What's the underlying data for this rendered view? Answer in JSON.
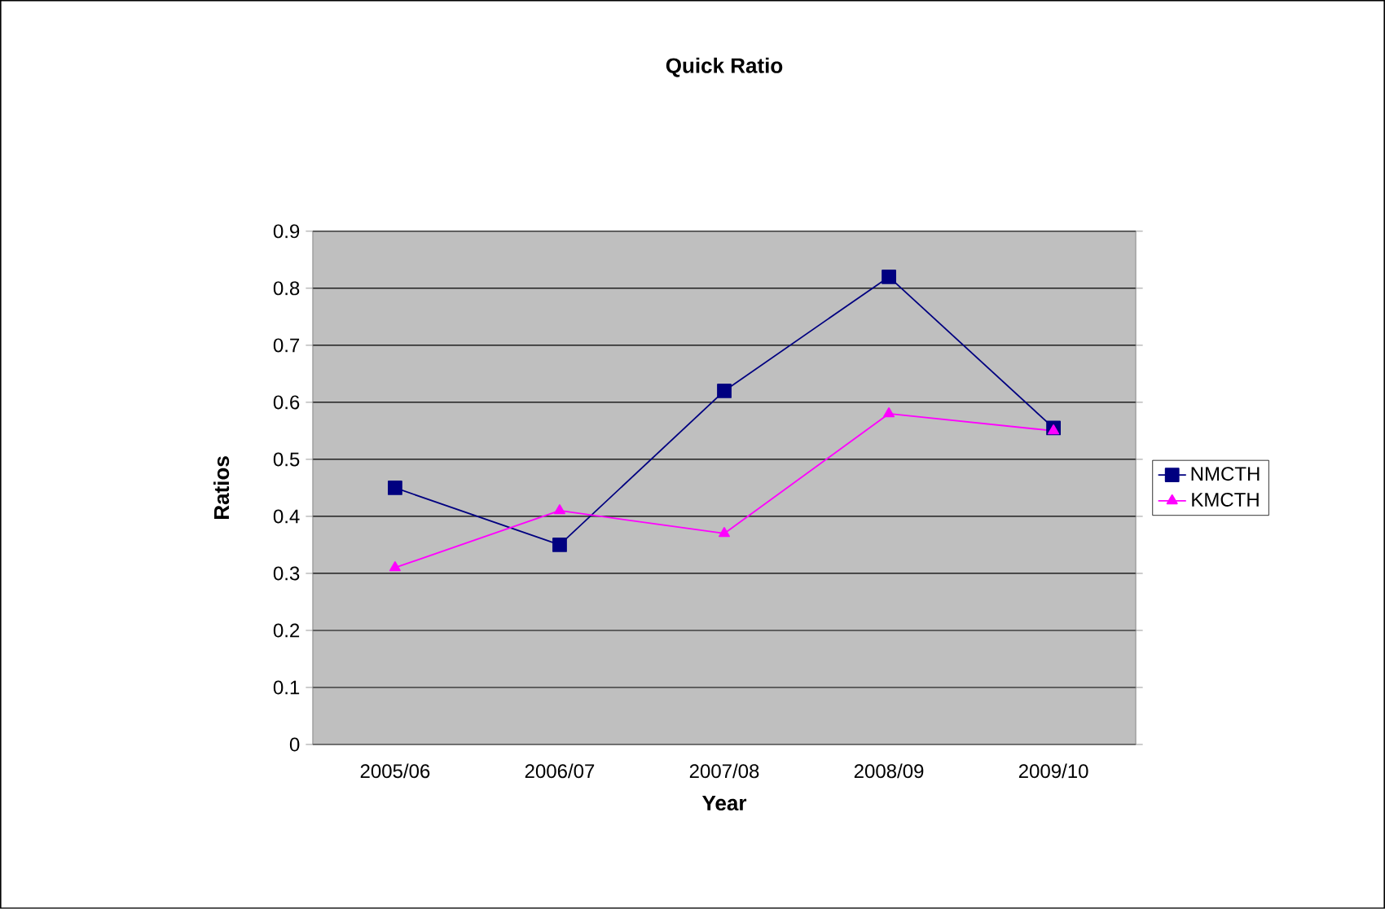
{
  "chart_data": {
    "type": "line",
    "title": "Quick Ratio",
    "xlabel": "Year",
    "ylabel": "Ratios",
    "categories": [
      "2005/06",
      "2006/07",
      "2007/08",
      "2008/09",
      "2009/10"
    ],
    "series": [
      {
        "name": "NMCTH",
        "color": "#000080",
        "marker": "square",
        "values": [
          0.45,
          0.35,
          0.62,
          0.82,
          0.555
        ]
      },
      {
        "name": "KMCTH",
        "color": "#ff00ff",
        "marker": "triangle",
        "values": [
          0.31,
          0.41,
          0.37,
          0.58,
          0.55
        ]
      }
    ],
    "ylim": [
      0,
      0.9
    ],
    "yticks": [
      0,
      0.1,
      0.2,
      0.3,
      0.4,
      0.5,
      0.6,
      0.7,
      0.8,
      0.9
    ],
    "grid": "y",
    "legend": "right",
    "line_style": "solid"
  }
}
